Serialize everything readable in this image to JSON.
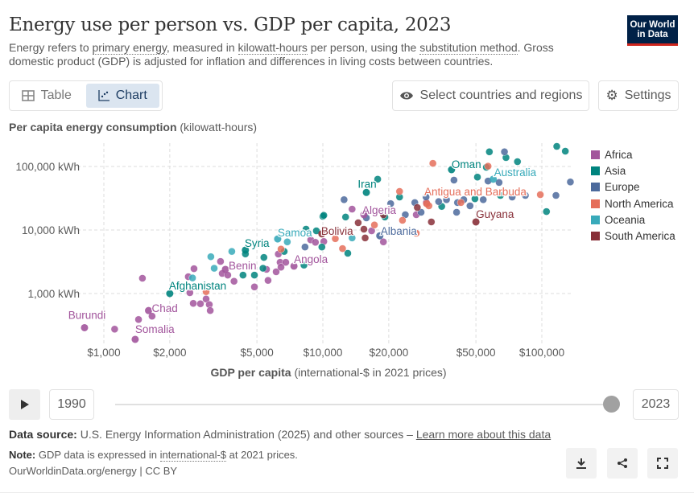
{
  "header": {
    "title": "Energy use per person vs. GDP per capita, 2023",
    "subtitle_parts": [
      "Energy refers to ",
      "primary energy",
      ", measured in ",
      "kilowatt-hours",
      " per person, using the ",
      "substitution method",
      ". Gross domestic product (GDP) is adjusted for inflation and differences in living costs between countries."
    ],
    "logo_line1": "Our World",
    "logo_line2": "in Data"
  },
  "controls": {
    "table": "Table",
    "chart": "Chart",
    "select": "Select countries and regions",
    "settings": "Settings"
  },
  "colors": {
    "Africa": "#a2559c",
    "Asia": "#00847e",
    "Europe": "#4c6a9c",
    "North America": "#e56e5a",
    "Oceania": "#38aaba",
    "South America": "#883039"
  },
  "chart_data": {
    "type": "scatter",
    "title": "Energy use per person vs. GDP per capita, 2023",
    "ylabel_bold": "Per capita energy consumption",
    "ylabel_unit": "(kilowatt-hours)",
    "xlabel_bold": "GDP per capita",
    "xlabel_unit": "(international-$ in 2021 prices)",
    "xscale": "log",
    "yscale": "log",
    "xlim": [
      750,
      140000
    ],
    "ylim": [
      150,
      230000
    ],
    "xticks": [
      {
        "v": 1000,
        "label": "$1,000"
      },
      {
        "v": 2000,
        "label": "$2,000"
      },
      {
        "v": 5000,
        "label": "$5,000"
      },
      {
        "v": 10000,
        "label": "$10,000"
      },
      {
        "v": 20000,
        "label": "$20,000"
      },
      {
        "v": 50000,
        "label": "$50,000"
      },
      {
        "v": 100000,
        "label": "$100,000"
      }
    ],
    "yticks": [
      {
        "v": 1000,
        "label": "1,000 kWh"
      },
      {
        "v": 10000,
        "label": "10,000 kWh"
      },
      {
        "v": 100000,
        "label": "100,000 kWh"
      }
    ],
    "grid": true,
    "legend_position": "right",
    "legend": [
      "Africa",
      "Asia",
      "Europe",
      "North America",
      "Oceania",
      "South America"
    ],
    "labeled": [
      {
        "name": "Burundi",
        "region": "Africa",
        "x": 816,
        "y": 290
      },
      {
        "name": "Somalia",
        "region": "Africa",
        "x": 1390,
        "y": 190
      },
      {
        "name": "Chad",
        "region": "Africa",
        "x": 1600,
        "y": 540
      },
      {
        "name": "Afghanistan",
        "region": "Asia",
        "x": 2000,
        "y": 1000
      },
      {
        "name": "Benin",
        "region": "Africa",
        "x": 3590,
        "y": 2400
      },
      {
        "name": "Syria",
        "region": "Asia",
        "x": 4430,
        "y": 4830
      },
      {
        "name": "Samoa",
        "region": "Oceania",
        "x": 6220,
        "y": 7240
      },
      {
        "name": "Angola",
        "region": "Africa",
        "x": 7380,
        "y": 2700
      },
      {
        "name": "Bolivia",
        "region": "South America",
        "x": 9900,
        "y": 8700
      },
      {
        "name": "Iran",
        "region": "Asia",
        "x": 15800,
        "y": 39000
      },
      {
        "name": "Algeria",
        "region": "Africa",
        "x": 15400,
        "y": 17400
      },
      {
        "name": "Albania",
        "region": "Europe",
        "x": 18200,
        "y": 8100
      },
      {
        "name": "Oman",
        "region": "Asia",
        "x": 38700,
        "y": 89000
      },
      {
        "name": "Australia",
        "region": "Oceania",
        "x": 60000,
        "y": 63000
      },
      {
        "name": "Antigua and Barbuda",
        "region": "North America",
        "x": 29800,
        "y": 26000
      },
      {
        "name": "Guyana",
        "region": "South America",
        "x": 50000,
        "y": 13400
      }
    ],
    "points": [
      [
        "Africa",
        1500,
        1740
      ],
      [
        "Africa",
        1440,
        390
      ],
      [
        "Africa",
        1120,
        275
      ],
      [
        "Africa",
        1660,
        440
      ],
      [
        "Africa",
        2580,
        2460
      ],
      [
        "Africa",
        2430,
        1840
      ],
      [
        "Africa",
        2470,
        1030
      ],
      [
        "Africa",
        2560,
        700
      ],
      [
        "Africa",
        2760,
        690
      ],
      [
        "Africa",
        2930,
        820
      ],
      [
        "Africa",
        3030,
        670
      ],
      [
        "Africa",
        3060,
        540
      ],
      [
        "Africa",
        3410,
        3200
      ],
      [
        "Africa",
        3470,
        2070
      ],
      [
        "Africa",
        3680,
        1950
      ],
      [
        "Africa",
        3930,
        1560
      ],
      [
        "Africa",
        4870,
        1270
      ],
      [
        "Africa",
        5620,
        1610
      ],
      [
        "Africa",
        5530,
        2400
      ],
      [
        "Africa",
        6120,
        2200
      ],
      [
        "Africa",
        6260,
        4180
      ],
      [
        "Africa",
        6380,
        3100
      ],
      [
        "Africa",
        6770,
        3100
      ],
      [
        "Africa",
        6440,
        2600
      ],
      [
        "Africa",
        8800,
        7000
      ],
      [
        "Africa",
        9250,
        6400
      ],
      [
        "Africa",
        10100,
        6600
      ],
      [
        "Africa",
        13600,
        21300
      ],
      [
        "Africa",
        18900,
        6500
      ],
      [
        "Africa",
        16700,
        9700
      ],
      [
        "Africa",
        26700,
        17400
      ],
      [
        "Africa",
        29700,
        27000
      ],
      [
        "Asia",
        4430,
        4200
      ],
      [
        "Asia",
        5380,
        3700
      ],
      [
        "Asia",
        5330,
        2500
      ],
      [
        "Asia",
        4320,
        1950
      ],
      [
        "Asia",
        4870,
        1950
      ],
      [
        "Asia",
        8380,
        10300
      ],
      [
        "Asia",
        9340,
        9700
      ],
      [
        "Asia",
        10000,
        16400
      ],
      [
        "Asia",
        9900,
        5400
      ],
      [
        "Asia",
        8200,
        2800
      ],
      [
        "Asia",
        6660,
        4600
      ],
      [
        "Asia",
        57600,
        170000
      ],
      [
        "Asia",
        68600,
        138000
      ],
      [
        "Asia",
        77400,
        119000
      ],
      [
        "Asia",
        117000,
        207000
      ],
      [
        "Asia",
        128000,
        174000
      ],
      [
        "Asia",
        50800,
        68000
      ],
      [
        "Asia",
        55800,
        97000
      ],
      [
        "Asia",
        105000,
        19500
      ],
      [
        "Asia",
        64700,
        35000
      ],
      [
        "Asia",
        49500,
        31000
      ],
      [
        "Asia",
        34900,
        23500
      ],
      [
        "Asia",
        22400,
        33000
      ],
      [
        "Asia",
        19200,
        16000
      ],
      [
        "Asia",
        17800,
        63000
      ],
      [
        "Asia",
        13000,
        4300
      ],
      [
        "Asia",
        12700,
        16000
      ],
      [
        "Asia",
        10100,
        17000
      ],
      [
        "Europe",
        8290,
        5400
      ],
      [
        "Europe",
        67500,
        170000
      ],
      [
        "Europe",
        39700,
        61000
      ],
      [
        "Europe",
        56800,
        59000
      ],
      [
        "Europe",
        63800,
        56000
      ],
      [
        "Europe",
        135000,
        57000
      ],
      [
        "Europe",
        116000,
        35000
      ],
      [
        "Europe",
        84100,
        35000
      ],
      [
        "Europe",
        73200,
        33000
      ],
      [
        "Europe",
        54000,
        30000
      ],
      [
        "Europe",
        47000,
        24000
      ],
      [
        "Europe",
        40800,
        19000
      ],
      [
        "Europe",
        41200,
        27000
      ],
      [
        "Europe",
        36700,
        30000
      ],
      [
        "Europe",
        33800,
        28000
      ],
      [
        "Europe",
        28100,
        19000
      ],
      [
        "Europe",
        26300,
        27000
      ],
      [
        "Europe",
        23800,
        17400
      ],
      [
        "Europe",
        20400,
        26000
      ],
      [
        "Europe",
        12500,
        30000
      ],
      [
        "Europe",
        15800,
        15500
      ],
      [
        "Europe",
        29600,
        33000
      ],
      [
        "Europe",
        44000,
        30000
      ],
      [
        "North America",
        2930,
        1070
      ],
      [
        "North America",
        6440,
        5000
      ],
      [
        "North America",
        11400,
        7300
      ],
      [
        "North America",
        31800,
        112000
      ],
      [
        "North America",
        56800,
        101000
      ],
      [
        "North America",
        98400,
        36000
      ],
      [
        "North America",
        22400,
        40500
      ],
      [
        "North America",
        23100,
        14200
      ],
      [
        "North America",
        30500,
        24000
      ],
      [
        "North America",
        12300,
        5100
      ],
      [
        "North America",
        17200,
        12000
      ],
      [
        "North America",
        26700,
        8900
      ],
      [
        "North America",
        42700,
        27000
      ],
      [
        "Oceania",
        3080,
        3800
      ],
      [
        "Oceania",
        3190,
        2500
      ],
      [
        "Oceania",
        3840,
        4600
      ],
      [
        "Oceania",
        2540,
        1760
      ],
      [
        "Oceania",
        6880,
        6500
      ],
      [
        "Oceania",
        13600,
        7500
      ],
      [
        "South America",
        31300,
        13400
      ],
      [
        "South America",
        15600,
        7500
      ],
      [
        "South America",
        15400,
        10300
      ],
      [
        "South America",
        18900,
        17400
      ],
      [
        "South America",
        14500,
        13000
      ],
      [
        "South America",
        27000,
        22600
      ]
    ]
  },
  "timeline": {
    "start_year": "1990",
    "end_year": "2023",
    "position": 1.0
  },
  "footer": {
    "source_label": "Data source:",
    "source_text": "U.S. Energy Information Administration (2025) and other sources – ",
    "source_link": "Learn more about this data",
    "note_label": "Note:",
    "note_text1": "GDP data is expressed in ",
    "note_link": "international-$",
    "note_text2": " at 2021 prices.",
    "credit": "OurWorldinData.org/energy | CC BY"
  }
}
